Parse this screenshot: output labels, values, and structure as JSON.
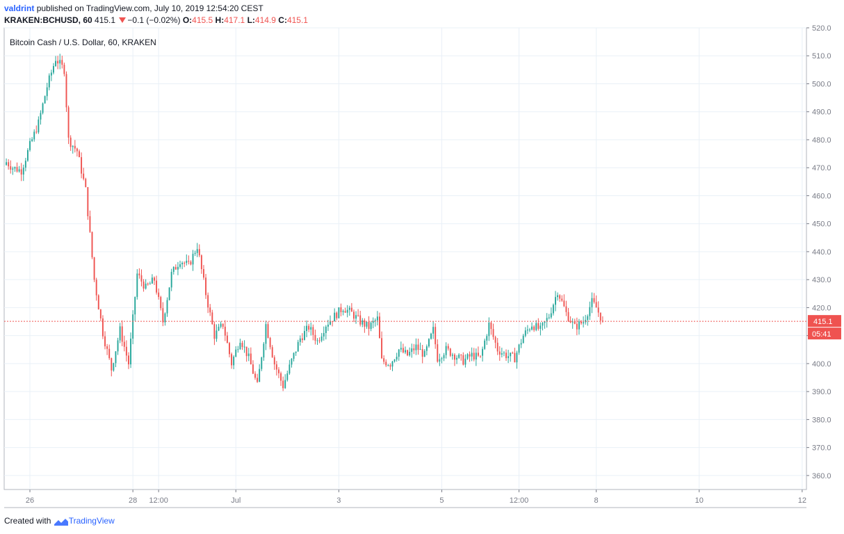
{
  "header": {
    "user": "valdrint",
    "published_text": "published on TradingView.com, July 10, 2019 12:54:20 CEST"
  },
  "ohlc_bar": {
    "symbol": "KRAKEN:BCHUSD, 60",
    "last": "415.1",
    "change": "−0.1 (−0.02%)",
    "open_label": "O:",
    "open": "415.5",
    "high_label": "H:",
    "high": "417.1",
    "low_label": "L:",
    "low": "414.9",
    "close_label": "C:",
    "close": "415.1"
  },
  "footer": {
    "created_with": "Created with",
    "brand": "TradingView"
  },
  "colors": {
    "up": "#26a69a",
    "down": "#ef5350",
    "grid": "#e9f0f7",
    "axis": "#787b86",
    "price_label_bg": "#ef5350",
    "brand": "#2962ff"
  },
  "chart_data": {
    "type": "candlestick",
    "title": "Bitcoin Cash / U.S. Dollar, 60, KRAKEN",
    "y_ticks": [
      "360.0",
      "370.0",
      "380.0",
      "390.0",
      "400.0",
      "410.0",
      "420.0",
      "430.0",
      "440.0",
      "450.0",
      "460.0",
      "470.0",
      "480.0",
      "490.0",
      "500.0",
      "510.0",
      "520.0"
    ],
    "ylim": [
      355,
      520
    ],
    "x_ticks": [
      {
        "label": "26",
        "hour": 24
      },
      {
        "label": "28",
        "hour": 72
      },
      {
        "label": "12:00",
        "hour": 84
      },
      {
        "label": "Jul",
        "hour": 120
      },
      {
        "label": "3",
        "hour": 168
      },
      {
        "label": "5",
        "hour": 216
      },
      {
        "label": "12:00",
        "hour": 252
      },
      {
        "label": "8",
        "hour": 288
      },
      {
        "label": "10",
        "hour": 336
      },
      {
        "label": "12",
        "hour": 384
      }
    ],
    "x_range_hours": [
      12,
      386
    ],
    "current_price": 415.1,
    "current_price_label": "415.1",
    "countdown_label": "05:41",
    "key_closes": [
      [
        13,
        472
      ],
      [
        16,
        470
      ],
      [
        20,
        469
      ],
      [
        24,
        478
      ],
      [
        28,
        486
      ],
      [
        32,
        499
      ],
      [
        36,
        509
      ],
      [
        40,
        505
      ],
      [
        42,
        480
      ],
      [
        46,
        476
      ],
      [
        50,
        462
      ],
      [
        54,
        430
      ],
      [
        58,
        411
      ],
      [
        62,
        398
      ],
      [
        66,
        412
      ],
      [
        70,
        400
      ],
      [
        74,
        432
      ],
      [
        78,
        427
      ],
      [
        82,
        430
      ],
      [
        86,
        415
      ],
      [
        90,
        432
      ],
      [
        94,
        437
      ],
      [
        98,
        435
      ],
      [
        102,
        442
      ],
      [
        106,
        425
      ],
      [
        110,
        410
      ],
      [
        114,
        414
      ],
      [
        118,
        400
      ],
      [
        122,
        409
      ],
      [
        126,
        402
      ],
      [
        130,
        392
      ],
      [
        134,
        414
      ],
      [
        138,
        400
      ],
      [
        142,
        392
      ],
      [
        146,
        401
      ],
      [
        150,
        409
      ],
      [
        154,
        413
      ],
      [
        158,
        408
      ],
      [
        162,
        414
      ],
      [
        166,
        417
      ],
      [
        170,
        420
      ],
      [
        174,
        418
      ],
      [
        178,
        415
      ],
      [
        182,
        413
      ],
      [
        186,
        416
      ],
      [
        188,
        401
      ],
      [
        192,
        400
      ],
      [
        196,
        405
      ],
      [
        200,
        403
      ],
      [
        204,
        406
      ],
      [
        208,
        403
      ],
      [
        212,
        412
      ],
      [
        214,
        402
      ],
      [
        218,
        405
      ],
      [
        222,
        403
      ],
      [
        226,
        401
      ],
      [
        230,
        403
      ],
      [
        234,
        402
      ],
      [
        238,
        414
      ],
      [
        242,
        405
      ],
      [
        246,
        403
      ],
      [
        250,
        402
      ],
      [
        254,
        410
      ],
      [
        258,
        414
      ],
      [
        262,
        412
      ],
      [
        266,
        417
      ],
      [
        270,
        426
      ],
      [
        274,
        418
      ],
      [
        278,
        413
      ],
      [
        282,
        415
      ],
      [
        286,
        422
      ],
      [
        288,
        420
      ],
      [
        291,
        415.1
      ]
    ]
  }
}
